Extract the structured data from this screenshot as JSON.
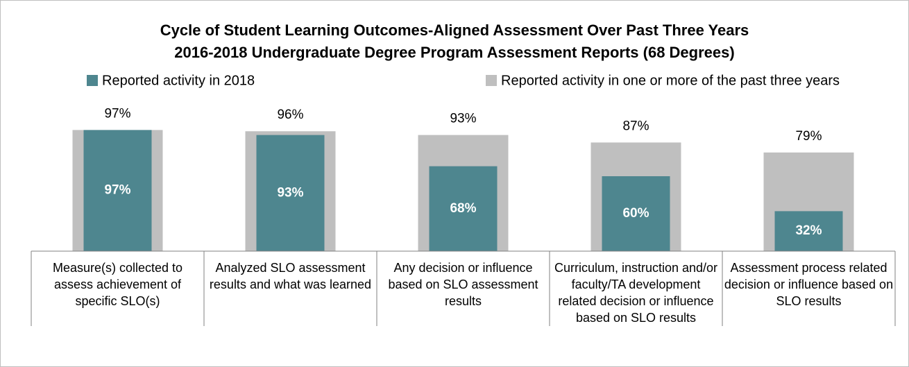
{
  "chart_data": {
    "type": "overlap_bar",
    "title": "Cycle of Student Learning Outcomes-Aligned Assessment Over Past Three Years",
    "subtitle": "2016-2018 Undergraduate Degree Program Assessment Reports (68 Degrees)",
    "categories": [
      "Measure(s) collected to assess achievement of specific SLO(s)",
      "Analyzed SLO assessment results and what was learned",
      "Any decision or influence based on SLO assessment results",
      "Curriculum, instruction and/or faculty/TA development related decision or influence based on SLO results",
      "Assessment process related decision or influence based on SLO results"
    ],
    "series": [
      {
        "name": "Reported activity in 2018",
        "color": "#4e868f",
        "values": [
          97,
          93,
          68,
          60,
          32
        ],
        "value_labels": [
          "97%",
          "93%",
          "68%",
          "60%",
          "32%"
        ]
      },
      {
        "name": "Reported activity in one or more of the past three years",
        "color": "#bfbfbf",
        "values": [
          97,
          96,
          93,
          87,
          79
        ],
        "value_labels": [
          "97%",
          "96%",
          "93%",
          "87%",
          "79%"
        ]
      }
    ],
    "ylim": [
      0,
      100
    ]
  }
}
